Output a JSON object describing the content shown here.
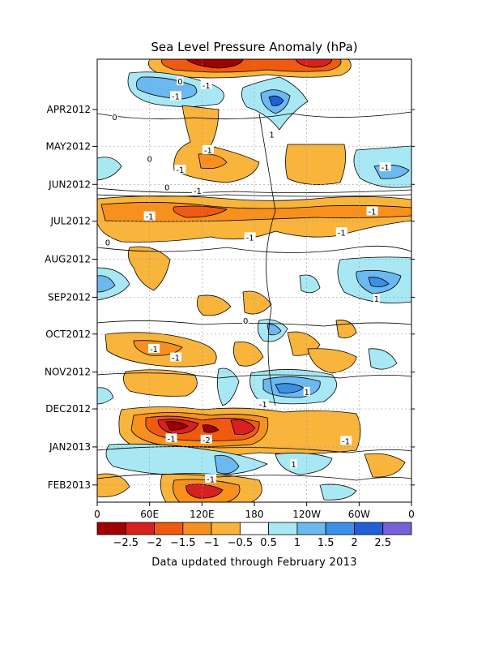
{
  "chart_data": {
    "type": "heatmap",
    "title": "Sea Level Pressure Anomaly (hPa)",
    "footnote": "Data updated through February 2013",
    "x_ticks": [
      "0",
      "60E",
      "120E",
      "180",
      "120W",
      "60W",
      "0"
    ],
    "x_tick_positions_deg": [
      0,
      60,
      120,
      180,
      240,
      300,
      360
    ],
    "y_ticks": [
      "APR2012",
      "MAY2012",
      "JUN2012",
      "JUL2012",
      "AUG2012",
      "SEP2012",
      "OCT2012",
      "NOV2012",
      "DEC2012",
      "JAN2013",
      "FEB2013"
    ],
    "colorbar": {
      "labels": [
        "-2.5",
        "-2",
        "-1.5",
        "-1",
        "-0.5",
        "0.5",
        "1",
        "1.5",
        "2",
        "2.5"
      ],
      "colors": [
        "#a00000",
        "#d82020",
        "#f05a10",
        "#f7901c",
        "#f9b43c",
        "#ffffff",
        "#a8e8f4",
        "#6cb8f0",
        "#3c90e8",
        "#2060d8",
        "#7860d8"
      ]
    },
    "contour_labels": [
      {
        "text": "-1",
        "lon": 125,
        "date": "2012-03-26"
      },
      {
        "text": "-1",
        "lon": 90,
        "date": "2012-04-04"
      },
      {
        "text": "0",
        "lon": 95,
        "date": "2012-03-23"
      },
      {
        "text": "0",
        "lon": 20,
        "date": "2012-04-21"
      },
      {
        "text": "1",
        "lon": 200,
        "date": "2012-05-05"
      },
      {
        "text": "-1",
        "lon": 127,
        "date": "2012-05-18"
      },
      {
        "text": "0",
        "lon": 60,
        "date": "2012-05-25"
      },
      {
        "text": "-1",
        "lon": 95,
        "date": "2012-06-03"
      },
      {
        "text": "0",
        "lon": 80,
        "date": "2012-06-17"
      },
      {
        "text": "-1",
        "lon": 115,
        "date": "2012-06-20"
      },
      {
        "text": "-1",
        "lon": 330,
        "date": "2012-06-01"
      },
      {
        "text": "-1",
        "lon": 60,
        "date": "2012-07-11"
      },
      {
        "text": "-1",
        "lon": 280,
        "date": "2012-07-24"
      },
      {
        "text": "-1",
        "lon": 175,
        "date": "2012-07-28"
      },
      {
        "text": "-1",
        "lon": 315,
        "date": "2012-07-07"
      },
      {
        "text": "0",
        "lon": 12,
        "date": "2012-08-01"
      },
      {
        "text": "1",
        "lon": 320,
        "date": "2012-09-16"
      },
      {
        "text": "0",
        "lon": 170,
        "date": "2012-10-04"
      },
      {
        "text": "-1",
        "lon": 65,
        "date": "2012-10-27"
      },
      {
        "text": "-1",
        "lon": 90,
        "date": "2012-11-03"
      },
      {
        "text": "1",
        "lon": 240,
        "date": "2012-12-01"
      },
      {
        "text": "-1",
        "lon": 190,
        "date": "2012-12-11"
      },
      {
        "text": "-1",
        "lon": 85,
        "date": "2013-01-08"
      },
      {
        "text": "-2",
        "lon": 125,
        "date": "2013-01-09"
      },
      {
        "text": "-1",
        "lon": 285,
        "date": "2013-01-10"
      },
      {
        "text": "1",
        "lon": 225,
        "date": "2013-01-29"
      },
      {
        "text": "-1",
        "lon": 130,
        "date": "2013-02-10"
      }
    ]
  }
}
